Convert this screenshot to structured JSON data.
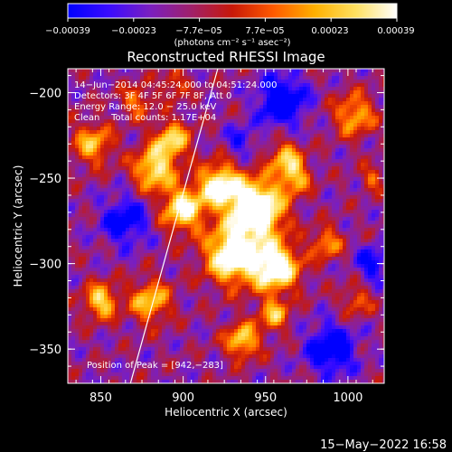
{
  "chart_data": {
    "type": "heatmap",
    "title": "Reconstructed RHESSI Image",
    "xlabel": "Heliocentric X (arcsec)",
    "ylabel": "Heliocentric Y (arcsec)",
    "xlim": [
      830,
      1022
    ],
    "ylim": [
      -370,
      -186
    ],
    "x_ticks": [
      850,
      900,
      950,
      1000
    ],
    "y_ticks": [
      -200,
      -250,
      -300,
      -350
    ],
    "x_tick_labels": [
      "850",
      "900",
      "950",
      "1000"
    ],
    "y_tick_labels": [
      "−200",
      "−250",
      "−300",
      "−350"
    ],
    "colorbar": {
      "ticks": [
        "−0.00039",
        "−0.00023",
        "−7.7e−05",
        "7.7e−05",
        "0.00023",
        "0.00039"
      ],
      "unit_label": "(photons cm⁻² s⁻¹ asec⁻²)",
      "range": [
        -0.00039,
        0.00039
      ],
      "colors": [
        "#0000ff",
        "#3a0cff",
        "#7a1fc0",
        "#a0206a",
        "#c81808",
        "#ff5a00",
        "#ffb000",
        "#ffe060",
        "#ffffff"
      ]
    },
    "limb_line": [
      [
        921,
        -186
      ],
      [
        868,
        -370
      ]
    ],
    "peak": [
      942,
      -283
    ],
    "annotations": {
      "time": "14−Jun−2014 04:45:24.000 to 04:51:24.000",
      "detectors": "Detectors: 3F 4F 5F 6F 7F 8F, Att 0",
      "energy": "Energy Range: 12.0 − 25.0 keV",
      "clean": "Clean    Total counts: 1.17E+04",
      "peak": "Position of Peak = [942,−283]"
    },
    "footer_date": "15−May−2022 16:58"
  }
}
